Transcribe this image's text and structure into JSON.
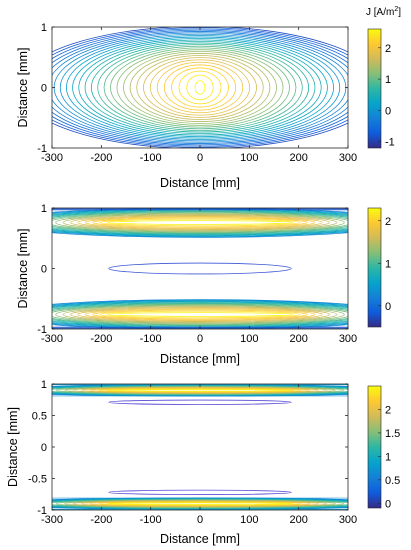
{
  "chart_data": [
    {
      "type": "contour",
      "xlabel": "Distance [mm]",
      "ylabel": "Distance [mm]",
      "xlim": [
        -300,
        300
      ],
      "ylim": [
        -1,
        1
      ],
      "x_ticks": [
        "-300",
        "-200",
        "-100",
        "0",
        "100",
        "200",
        "300"
      ],
      "y_ticks": [
        "-1",
        "0",
        "1"
      ],
      "colorbar": {
        "label": "J [A/m",
        "label_sup": "2",
        "label_close": "]",
        "ticks": [
          "2",
          "1",
          "0",
          "-1"
        ],
        "range": [
          -1.2,
          2.6
        ]
      },
      "pattern": "single peak at center (0,0)",
      "peak_value": 2.5
    },
    {
      "type": "contour",
      "xlabel": "Distance [mm]",
      "ylabel": "Distance [mm]",
      "xlim": [
        -300,
        300
      ],
      "ylim": [
        -1,
        1
      ],
      "x_ticks": [
        "-300",
        "-200",
        "-100",
        "0",
        "100",
        "200",
        "300"
      ],
      "y_ticks": [
        "-1",
        "0",
        "1"
      ],
      "colorbar": {
        "ticks": [
          "2",
          "1",
          "0"
        ],
        "range": [
          -0.5,
          2.3
        ]
      },
      "pattern": "two peak bands near y=±0.75",
      "peak_value": 2.2
    },
    {
      "type": "contour",
      "xlabel": "Distance [mm]",
      "ylabel": "Distance [mm]",
      "xlim": [
        -300,
        300
      ],
      "ylim": [
        -1,
        1
      ],
      "x_ticks": [
        "-300",
        "-200",
        "-100",
        "0",
        "100",
        "200",
        "300"
      ],
      "y_ticks": [
        "-1",
        "-0.5",
        "0",
        "0.5",
        "1"
      ],
      "colorbar": {
        "ticks": [
          "2",
          "1.5",
          "1",
          "0.5",
          "0"
        ],
        "range": [
          -0.1,
          2.5
        ]
      },
      "pattern": "two thin peak bands near y=±0.9",
      "peak_value": 2.4
    }
  ],
  "colors": {
    "parula": [
      "#352a87",
      "#0f5cdd",
      "#1481d6",
      "#06a4ca",
      "#2eb7a4",
      "#87bf77",
      "#d1bb59",
      "#fec832",
      "#f9fb0e"
    ]
  }
}
